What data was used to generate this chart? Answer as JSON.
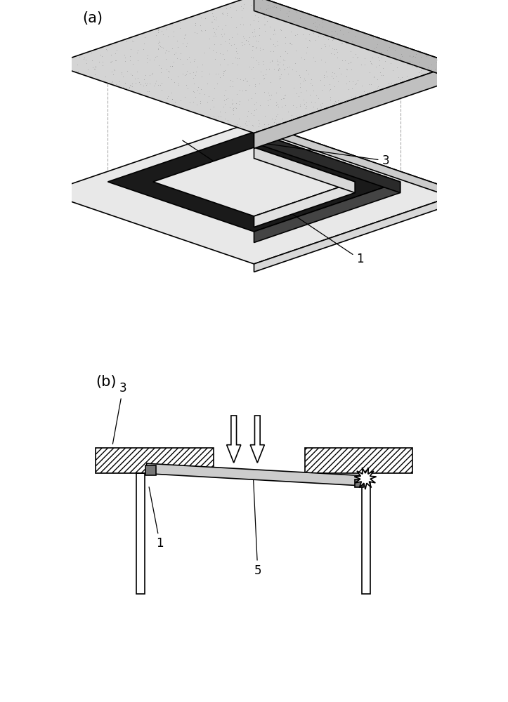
{
  "bg_color": "#ffffff",
  "label_a": "(a)",
  "label_b": "(b)",
  "lc": "#000000",
  "lw": 1.2,
  "plate_top_color": "#e8e8e8",
  "plate_front_color": "#d8d8d8",
  "plate_right_color": "#cccccc",
  "slab_top_color": "#d4d4d4",
  "slab_front_color": "#c0c0c0",
  "slab_right_color": "#b8b8b8",
  "ring_dark": "#1a1a1a",
  "ring_mid": "#444444",
  "ring_inner_color": "#e8e8e8",
  "guide_color": "#aaaaaa",
  "strip_fill": "#cccccc",
  "tape_sq_fill": "#888888",
  "hatch_density": "////"
}
